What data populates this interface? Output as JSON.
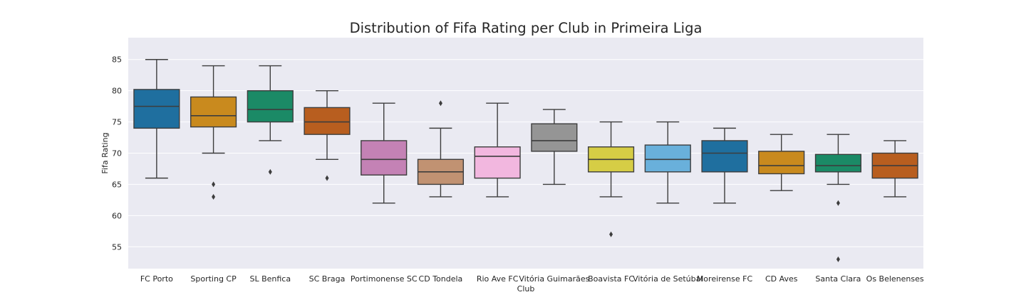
{
  "chart_data": {
    "type": "box",
    "title": "Distribution of Fifa Rating per Club in Primeira Liga",
    "xlabel": "Club",
    "ylabel": "Fifa Rating",
    "ylim": [
      51.5,
      88.5
    ],
    "yticks": [
      55,
      60,
      65,
      70,
      75,
      80,
      85
    ],
    "grid": true,
    "legend": "none",
    "categories": [
      "FC Porto",
      "Sporting CP",
      "SL Benfica",
      "SC Braga",
      "Portimonense SC",
      "CD Tondela",
      "Rio Ave FC",
      "Vitória Guimarães",
      "Boavista FC",
      "Vitória de Setúbal",
      "Moreirense FC",
      "CD Aves",
      "Santa Clara",
      "Os Belenenses"
    ],
    "series": [
      {
        "category": "FC Porto",
        "color": "#1f6f9f",
        "whisker_low": 66,
        "q1": 74,
        "median": 77.5,
        "q3": 80.2,
        "whisker_high": 85,
        "outliers": []
      },
      {
        "category": "Sporting CP",
        "color": "#c98a1e",
        "whisker_low": 70,
        "q1": 74.2,
        "median": 76,
        "q3": 79,
        "whisker_high": 84,
        "outliers": [
          65,
          63
        ]
      },
      {
        "category": "SL Benfica",
        "color": "#1b8a66",
        "whisker_low": 72,
        "q1": 75,
        "median": 77,
        "q3": 80,
        "whisker_high": 84,
        "outliers": [
          67
        ]
      },
      {
        "category": "SC Braga",
        "color": "#b85e1f",
        "whisker_low": 69,
        "q1": 73,
        "median": 75,
        "q3": 77.3,
        "whisker_high": 80,
        "outliers": [
          66
        ]
      },
      {
        "category": "Portimonense SC",
        "color": "#c482b5",
        "whisker_low": 62,
        "q1": 66.5,
        "median": 69,
        "q3": 72,
        "whisker_high": 78,
        "outliers": []
      },
      {
        "category": "CD Tondela",
        "color": "#c19272",
        "whisker_low": 63,
        "q1": 65,
        "median": 67,
        "q3": 69,
        "whisker_high": 74,
        "outliers": [
          78
        ]
      },
      {
        "category": "Rio Ave FC",
        "color": "#f2b7df",
        "whisker_low": 63,
        "q1": 66,
        "median": 69.5,
        "q3": 71,
        "whisker_high": 78,
        "outliers": []
      },
      {
        "category": "Vitória Guimarães",
        "color": "#959595",
        "whisker_low": 65,
        "q1": 70.3,
        "median": 72,
        "q3": 74.7,
        "whisker_high": 77,
        "outliers": []
      },
      {
        "category": "Boavista FC",
        "color": "#d6cd45",
        "whisker_low": 63,
        "q1": 67,
        "median": 69,
        "q3": 71,
        "whisker_high": 75,
        "outliers": [
          57
        ]
      },
      {
        "category": "Vitória de Setúbal",
        "color": "#69b0db",
        "whisker_low": 62,
        "q1": 67,
        "median": 69,
        "q3": 71.3,
        "whisker_high": 75,
        "outliers": []
      },
      {
        "category": "Moreirense FC",
        "color": "#1f6f9f",
        "whisker_low": 62,
        "q1": 67,
        "median": 70,
        "q3": 72,
        "whisker_high": 74,
        "outliers": []
      },
      {
        "category": "CD Aves",
        "color": "#c98a1e",
        "whisker_low": 64,
        "q1": 66.7,
        "median": 68,
        "q3": 70.3,
        "whisker_high": 73,
        "outliers": []
      },
      {
        "category": "Santa Clara",
        "color": "#1b8a66",
        "whisker_low": 65,
        "q1": 67,
        "median": 68,
        "q3": 69.8,
        "whisker_high": 73,
        "outliers": [
          62,
          53
        ]
      },
      {
        "category": "Os Belenenses",
        "color": "#b85e1f",
        "whisker_low": 63,
        "q1": 66,
        "median": 68,
        "q3": 70,
        "whisker_high": 72,
        "outliers": []
      }
    ]
  }
}
